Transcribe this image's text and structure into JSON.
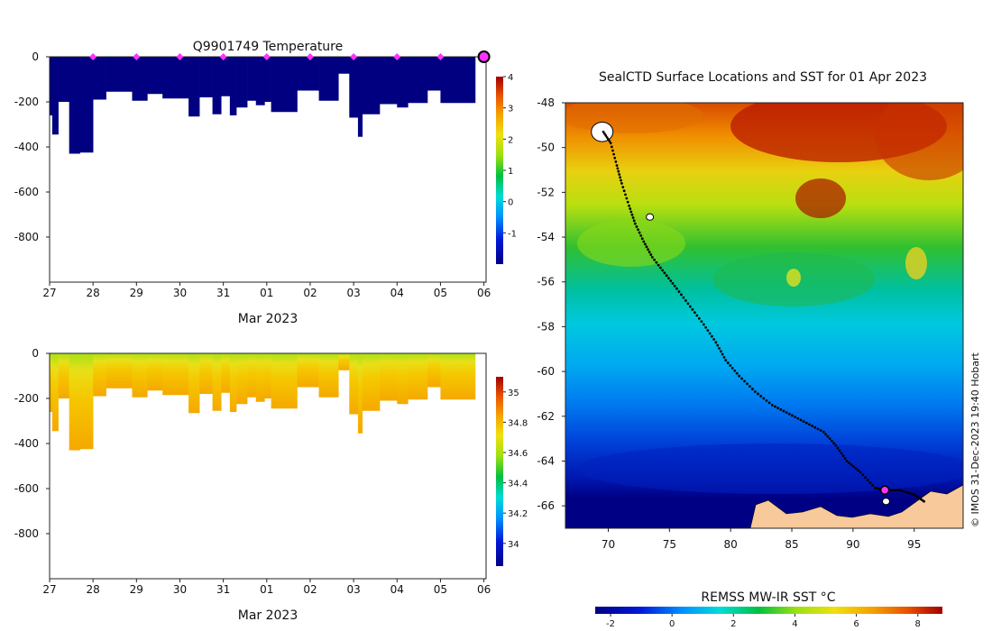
{
  "chart_data": [
    {
      "type": "heatmap",
      "title": "Q9901749  Temperature",
      "xlabel": "Mar 2023",
      "ylabel": "",
      "x_ticks": [
        "27",
        "28",
        "29",
        "30",
        "31",
        "01",
        "02",
        "03",
        "04",
        "05",
        "06"
      ],
      "y_ticks": [
        0,
        -200,
        -400,
        -600,
        -800
      ],
      "ylim": [
        -1000,
        0
      ],
      "colorbar_ticks": [
        4,
        3,
        2,
        1,
        0,
        -1
      ],
      "colorbar_range": [
        -2,
        4
      ],
      "surface_marker_days": [
        28,
        29,
        30,
        31,
        32,
        33,
        34,
        35,
        36,
        37
      ],
      "profiles": [
        {
          "start": 27.0,
          "end": 27.06,
          "depth": -260
        },
        {
          "start": 27.06,
          "end": 27.2,
          "depth": -345
        },
        {
          "start": 27.2,
          "end": 27.45,
          "depth": -200
        },
        {
          "start": 27.45,
          "end": 27.7,
          "depth": -430
        },
        {
          "start": 27.7,
          "end": 28.0,
          "depth": -425
        },
        {
          "start": 28.0,
          "end": 28.3,
          "depth": -190
        },
        {
          "start": 28.3,
          "end": 28.9,
          "depth": -155
        },
        {
          "start": 28.9,
          "end": 29.25,
          "depth": -195
        },
        {
          "start": 29.25,
          "end": 29.6,
          "depth": -165
        },
        {
          "start": 29.6,
          "end": 30.2,
          "depth": -185
        },
        {
          "start": 30.2,
          "end": 30.45,
          "depth": -265
        },
        {
          "start": 30.45,
          "end": 30.75,
          "depth": -180
        },
        {
          "start": 30.75,
          "end": 30.95,
          "depth": -255
        },
        {
          "start": 30.95,
          "end": 31.15,
          "depth": -175
        },
        {
          "start": 31.15,
          "end": 31.3,
          "depth": -260
        },
        {
          "start": 31.3,
          "end": 31.55,
          "depth": -225
        },
        {
          "start": 31.55,
          "end": 31.75,
          "depth": -195
        },
        {
          "start": 31.75,
          "end": 31.95,
          "depth": -215
        },
        {
          "start": 31.95,
          "end": 32.1,
          "depth": -200
        },
        {
          "start": 32.1,
          "end": 32.7,
          "depth": -245
        },
        {
          "start": 32.7,
          "end": 33.2,
          "depth": -150
        },
        {
          "start": 33.2,
          "end": 33.65,
          "depth": -195
        },
        {
          "start": 33.65,
          "end": 33.9,
          "depth": -75
        },
        {
          "start": 33.9,
          "end": 34.1,
          "depth": -270
        },
        {
          "start": 34.1,
          "end": 34.2,
          "depth": -355
        },
        {
          "start": 34.2,
          "end": 34.6,
          "depth": -255
        },
        {
          "start": 34.6,
          "end": 35.0,
          "depth": -210
        },
        {
          "start": 35.0,
          "end": 35.25,
          "depth": -225
        },
        {
          "start": 35.25,
          "end": 35.7,
          "depth": -205
        },
        {
          "start": 35.7,
          "end": 36.0,
          "depth": -150
        },
        {
          "start": 36.0,
          "end": 36.8,
          "depth": -205
        }
      ]
    },
    {
      "type": "heatmap",
      "title": "",
      "xlabel": "Mar 2023",
      "ylabel": "",
      "x_ticks": [
        "27",
        "28",
        "29",
        "30",
        "31",
        "01",
        "02",
        "03",
        "04",
        "05",
        "06"
      ],
      "y_ticks": [
        0,
        -200,
        -400,
        -600,
        -800
      ],
      "ylim": [
        -1000,
        0
      ],
      "colorbar_ticks": [
        35,
        34.8,
        34.6,
        34.4,
        34.2,
        34
      ],
      "colorbar_range": [
        33.85,
        35.1
      ]
    },
    {
      "type": "heatmap",
      "title": "SealCTD Surface Locations and SST for 01 Apr 2023",
      "xlabel": "",
      "ylabel": "",
      "x_ticks": [
        70,
        75,
        80,
        85,
        90,
        95
      ],
      "y_ticks": [
        -48,
        -50,
        -52,
        -54,
        -56,
        -58,
        -60,
        -62,
        -64,
        -66
      ],
      "xlim": [
        66.5,
        99
      ],
      "ylim": [
        -67,
        -48
      ],
      "colorbar_label": "REMSS MW-IR SST °C",
      "colorbar_ticks": [
        -2,
        0,
        2,
        4,
        6,
        8
      ],
      "colorbar_range": [
        -2.5,
        8.8
      ],
      "track": [
        [
          69.6,
          -49.3
        ],
        [
          70.2,
          -49.8
        ],
        [
          70.7,
          -50.8
        ],
        [
          71.1,
          -51.6
        ],
        [
          71.7,
          -52.6
        ],
        [
          72.2,
          -53.4
        ],
        [
          72.9,
          -54.2
        ],
        [
          73.6,
          -54.9
        ],
        [
          74.6,
          -55.6
        ],
        [
          75.6,
          -56.3
        ],
        [
          76.7,
          -57.1
        ],
        [
          77.8,
          -57.9
        ],
        [
          78.8,
          -58.7
        ],
        [
          79.6,
          -59.5
        ],
        [
          80.7,
          -60.2
        ],
        [
          82.0,
          -60.9
        ],
        [
          83.4,
          -61.5
        ],
        [
          84.8,
          -61.9
        ],
        [
          86.2,
          -62.3
        ],
        [
          87.6,
          -62.7
        ],
        [
          88.6,
          -63.3
        ],
        [
          89.5,
          -64.0
        ],
        [
          90.6,
          -64.5
        ],
        [
          91.8,
          -65.2
        ],
        [
          92.6,
          -65.3
        ],
        [
          93.8,
          -65.3
        ],
        [
          95.0,
          -65.5
        ],
        [
          95.8,
          -65.8
        ]
      ],
      "latest_position": [
        92.6,
        -65.3
      ],
      "islands": [
        [
          69.5,
          -49.3
        ],
        [
          73.4,
          -53.1
        ],
        [
          92.7,
          -65.8
        ]
      ]
    }
  ],
  "credit": "© IMOS 31-Dec-2023 19:40 Hobart",
  "colors": {
    "marker": "#ff33ff",
    "deep_water": "#000080",
    "land": "#f8c99b",
    "track": "#000000"
  }
}
